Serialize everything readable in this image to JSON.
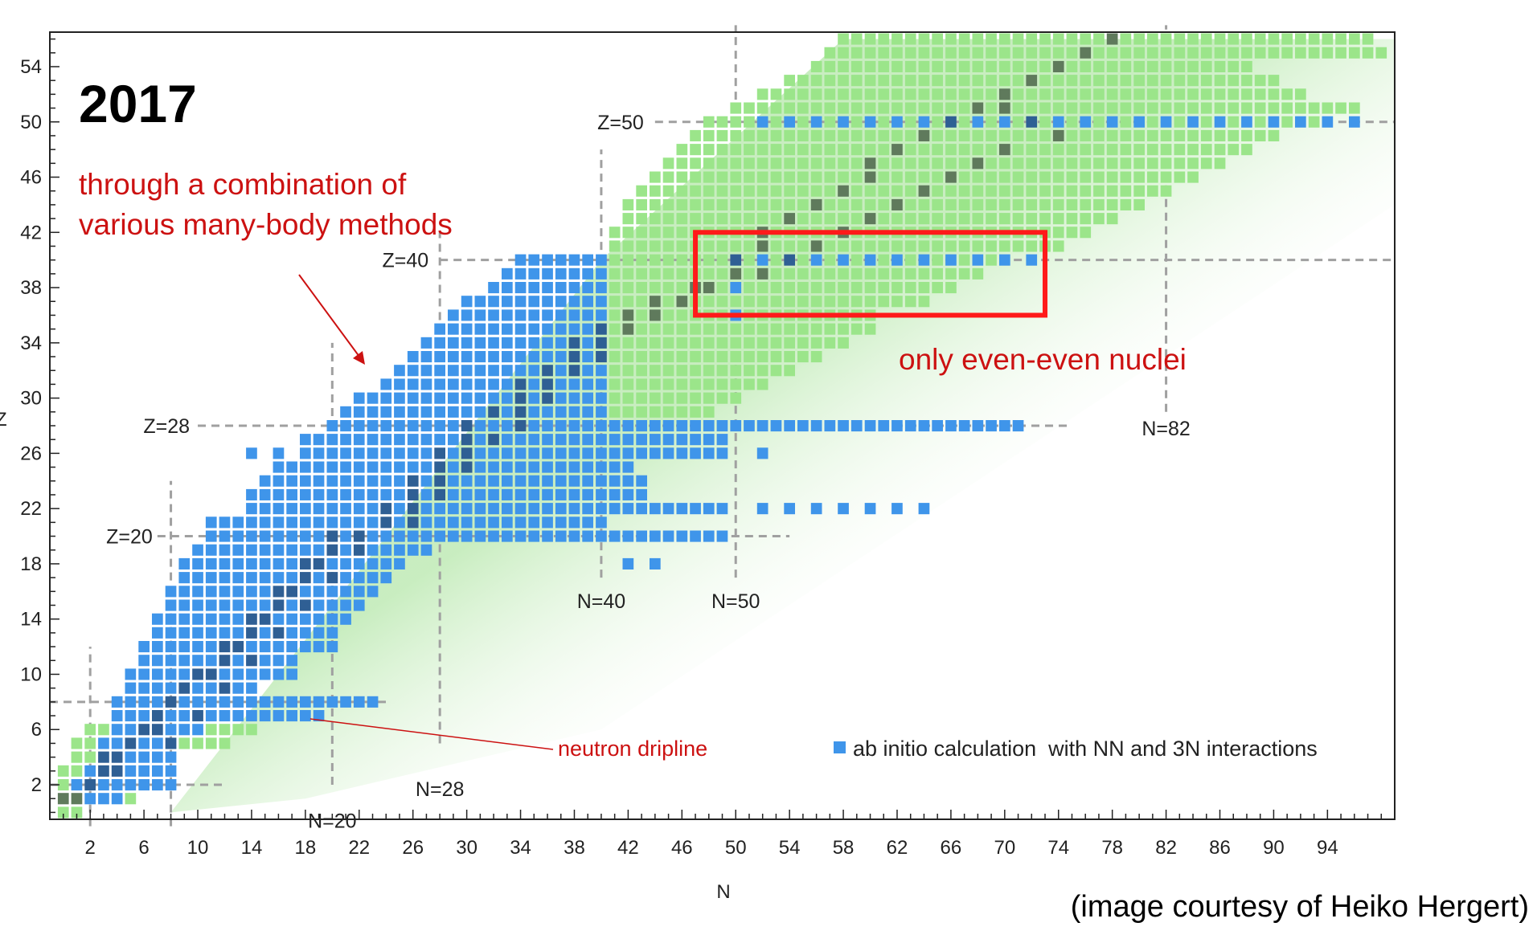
{
  "chart_data": {
    "type": "heatmap",
    "year_label": "2017",
    "xlabel": "N",
    "ylabel": "Z",
    "xlim": [
      -1,
      99
    ],
    "ylim": [
      -0.5,
      56.5
    ],
    "x_ticks": [
      2,
      6,
      10,
      14,
      18,
      22,
      26,
      30,
      34,
      38,
      42,
      46,
      50,
      54,
      58,
      62,
      66,
      70,
      74,
      78,
      82,
      86,
      90,
      94
    ],
    "y_ticks": [
      2,
      6,
      10,
      14,
      18,
      22,
      26,
      30,
      34,
      38,
      42,
      46,
      50,
      54
    ],
    "magic_numbers": [
      {
        "axis": "Z",
        "value": 2
      },
      {
        "axis": "N",
        "value": 2
      },
      {
        "axis": "Z",
        "value": 8
      },
      {
        "axis": "N",
        "value": 8
      },
      {
        "axis": "Z",
        "value": 20,
        "label": "Z=20"
      },
      {
        "axis": "N",
        "value": 20,
        "label": "N=20"
      },
      {
        "axis": "Z",
        "value": 28,
        "label": "Z=28"
      },
      {
        "axis": "N",
        "value": 28,
        "label": "N=28"
      },
      {
        "axis": "Z",
        "value": 40,
        "label": "Z=40"
      },
      {
        "axis": "N",
        "value": 40,
        "label": "N=40"
      },
      {
        "axis": "Z",
        "value": 50,
        "label": "Z=50"
      },
      {
        "axis": "N",
        "value": 50,
        "label": "N=50"
      },
      {
        "axis": "N",
        "value": 82,
        "label": "N=82"
      }
    ],
    "legend": {
      "label": "ab initio calculation  with NN and 3N interactions",
      "position": "bottom-right",
      "color": "#3f95ea"
    },
    "colors": {
      "known": "#9be58a",
      "stable": "#5f7a5c",
      "ab_initio": "#3f95ea",
      "ab_initio_stable": "#2f5f94",
      "predicted_region": "#c9f0c2",
      "magic_lines": "#a0a0a0",
      "annotation": "#cc1111"
    },
    "blue_rows": [
      [
        1,
        2,
        4
      ],
      [
        2,
        1,
        8
      ],
      [
        3,
        2,
        8
      ],
      [
        4,
        3,
        8
      ],
      [
        5,
        3,
        8
      ],
      [
        6,
        4,
        10
      ],
      [
        7,
        4,
        19
      ],
      [
        8,
        4,
        23
      ],
      [
        9,
        5,
        14
      ],
      [
        10,
        5,
        17
      ],
      [
        11,
        6,
        17
      ],
      [
        12,
        6,
        20
      ],
      [
        13,
        7,
        20
      ],
      [
        14,
        7,
        21
      ],
      [
        15,
        8,
        22
      ],
      [
        16,
        8,
        23
      ],
      [
        17,
        9,
        24
      ],
      [
        18,
        9,
        25
      ],
      [
        19,
        10,
        27
      ],
      [
        20,
        11,
        49
      ],
      [
        21,
        11,
        40
      ],
      [
        22,
        14,
        49
      ],
      [
        23,
        14,
        43
      ],
      [
        24,
        15,
        43
      ],
      [
        25,
        16,
        42
      ],
      [
        26,
        18,
        49
      ],
      [
        27,
        18,
        49
      ],
      [
        28,
        20,
        71
      ],
      [
        29,
        21,
        40
      ],
      [
        30,
        22,
        40
      ],
      [
        31,
        24,
        40
      ],
      [
        32,
        25,
        40
      ],
      [
        33,
        26,
        40
      ],
      [
        34,
        27,
        40
      ],
      [
        35,
        28,
        40
      ],
      [
        36,
        29,
        40
      ],
      [
        37,
        30,
        40
      ],
      [
        38,
        32,
        40
      ],
      [
        39,
        33,
        40
      ],
      [
        40,
        34,
        40
      ]
    ],
    "blue_isolated": [
      [
        14,
        26
      ],
      [
        16,
        26
      ],
      [
        52,
        26
      ],
      [
        52,
        22
      ],
      [
        54,
        22
      ],
      [
        56,
        22
      ],
      [
        58,
        22
      ],
      [
        60,
        22
      ],
      [
        62,
        22
      ],
      [
        64,
        22
      ],
      [
        42,
        18
      ],
      [
        44,
        18
      ],
      [
        50,
        40
      ],
      [
        52,
        40
      ],
      [
        54,
        40
      ],
      [
        56,
        40
      ],
      [
        58,
        40
      ],
      [
        60,
        40
      ],
      [
        62,
        40
      ],
      [
        64,
        40
      ],
      [
        66,
        40
      ],
      [
        68,
        40
      ],
      [
        70,
        40
      ],
      [
        72,
        40
      ],
      [
        50,
        38
      ],
      [
        50,
        36
      ],
      [
        52,
        50
      ],
      [
        54,
        50
      ],
      [
        56,
        50
      ],
      [
        58,
        50
      ],
      [
        60,
        50
      ],
      [
        62,
        50
      ],
      [
        64,
        50
      ],
      [
        66,
        50
      ],
      [
        68,
        50
      ],
      [
        70,
        50
      ],
      [
        72,
        50
      ],
      [
        74,
        50
      ],
      [
        76,
        50
      ],
      [
        78,
        50
      ],
      [
        80,
        50
      ],
      [
        82,
        50
      ],
      [
        84,
        50
      ],
      [
        86,
        50
      ],
      [
        88,
        50
      ],
      [
        90,
        50
      ],
      [
        92,
        50
      ],
      [
        94,
        50
      ],
      [
        96,
        50
      ]
    ],
    "green_rows": [
      [
        0,
        0,
        1
      ],
      [
        1,
        0,
        5
      ],
      [
        2,
        0,
        6
      ],
      [
        3,
        0,
        8
      ],
      [
        4,
        1,
        8
      ],
      [
        5,
        1,
        12
      ],
      [
        6,
        2,
        14
      ],
      [
        29,
        41,
        48
      ],
      [
        30,
        41,
        50
      ],
      [
        31,
        41,
        52
      ],
      [
        32,
        41,
        54
      ],
      [
        33,
        41,
        56
      ],
      [
        34,
        41,
        58
      ],
      [
        35,
        41,
        60
      ],
      [
        36,
        41,
        60
      ],
      [
        37,
        41,
        64
      ],
      [
        38,
        41,
        66
      ],
      [
        39,
        41,
        68
      ],
      [
        40,
        41,
        70
      ],
      [
        41,
        41,
        74
      ],
      [
        42,
        41,
        76
      ],
      [
        43,
        42,
        78
      ],
      [
        44,
        42,
        80
      ],
      [
        45,
        43,
        82
      ],
      [
        46,
        44,
        84
      ],
      [
        47,
        45,
        86
      ],
      [
        48,
        46,
        88
      ],
      [
        49,
        47,
        90
      ],
      [
        50,
        48,
        94
      ],
      [
        51,
        50,
        96
      ],
      [
        52,
        52,
        92
      ],
      [
        53,
        54,
        90
      ],
      [
        54,
        56,
        88
      ],
      [
        55,
        57,
        98
      ],
      [
        56,
        58,
        97
      ]
    ],
    "stable_cells": [
      [
        1,
        0
      ],
      [
        1,
        1
      ],
      [
        2,
        2
      ],
      [
        3,
        3
      ],
      [
        3,
        4
      ],
      [
        4,
        3
      ],
      [
        4,
        4
      ],
      [
        5,
        5
      ],
      [
        6,
        6
      ],
      [
        7,
        7
      ],
      [
        8,
        8
      ],
      [
        9,
        9
      ],
      [
        10,
        10
      ],
      [
        10,
        11
      ],
      [
        11,
        12
      ],
      [
        12,
        12
      ],
      [
        12,
        13
      ],
      [
        13,
        14
      ],
      [
        14,
        14
      ],
      [
        14,
        15
      ],
      [
        15,
        16
      ],
      [
        16,
        16
      ],
      [
        16,
        17
      ],
      [
        17,
        18
      ],
      [
        18,
        18
      ],
      [
        18,
        19
      ],
      [
        19,
        20
      ],
      [
        20,
        20
      ],
      [
        20,
        22
      ],
      [
        21,
        24
      ],
      [
        22,
        24
      ],
      [
        22,
        26
      ],
      [
        23,
        26
      ],
      [
        24,
        26
      ],
      [
        24,
        28
      ],
      [
        25,
        28
      ],
      [
        26,
        28
      ],
      [
        26,
        30
      ],
      [
        27,
        30
      ],
      [
        28,
        30
      ],
      [
        28,
        34
      ],
      [
        29,
        34
      ],
      [
        30,
        34
      ],
      [
        30,
        36
      ],
      [
        31,
        36
      ],
      [
        32,
        38
      ],
      [
        33,
        40
      ],
      [
        34,
        40
      ],
      [
        35,
        42
      ],
      [
        36,
        44
      ],
      [
        37,
        46
      ],
      [
        38,
        47
      ],
      [
        39,
        50
      ],
      [
        40,
        50
      ],
      [
        41,
        52
      ],
      [
        42,
        52
      ],
      [
        43,
        54
      ],
      [
        44,
        56
      ],
      [
        45,
        58
      ],
      [
        46,
        60
      ],
      [
        47,
        60
      ],
      [
        48,
        62
      ],
      [
        49,
        64
      ],
      [
        50,
        66
      ],
      [
        51,
        68
      ],
      [
        52,
        70
      ],
      [
        53,
        72
      ],
      [
        54,
        74
      ],
      [
        55,
        76
      ],
      [
        56,
        78
      ],
      [
        51,
        70
      ],
      [
        50,
        72
      ],
      [
        49,
        74
      ],
      [
        48,
        70
      ],
      [
        47,
        68
      ],
      [
        46,
        66
      ],
      [
        45,
        64
      ],
      [
        44,
        62
      ],
      [
        43,
        60
      ],
      [
        42,
        58
      ],
      [
        41,
        56
      ],
      [
        40,
        54
      ],
      [
        39,
        52
      ],
      [
        38,
        48
      ],
      [
        37,
        44
      ],
      [
        36,
        42
      ],
      [
        35,
        40
      ],
      [
        34,
        38
      ],
      [
        33,
        38
      ],
      [
        32,
        36
      ],
      [
        31,
        34
      ],
      [
        29,
        32
      ],
      [
        27,
        32
      ],
      [
        25,
        30
      ],
      [
        23,
        28
      ],
      [
        21,
        26
      ],
      [
        19,
        22
      ],
      [
        17,
        20
      ],
      [
        15,
        18
      ],
      [
        13,
        16
      ],
      [
        11,
        14
      ],
      [
        9,
        12
      ],
      [
        7,
        10
      ],
      [
        5,
        8
      ],
      [
        6,
        7
      ]
    ],
    "annotations": [
      {
        "text_lines": [
          "through a combination of",
          "various many-body methods"
        ],
        "kind": "arrow-note"
      },
      {
        "text": "only even-even nuclei",
        "kind": "box-note",
        "box_N": [
          47,
          73
        ],
        "box_Z": [
          36,
          42
        ]
      },
      {
        "text": "neutron  dripline",
        "kind": "pointer-note",
        "target": [
          18,
          7
        ]
      }
    ]
  },
  "credit": "(image courtesy of Heiko Hergert)"
}
